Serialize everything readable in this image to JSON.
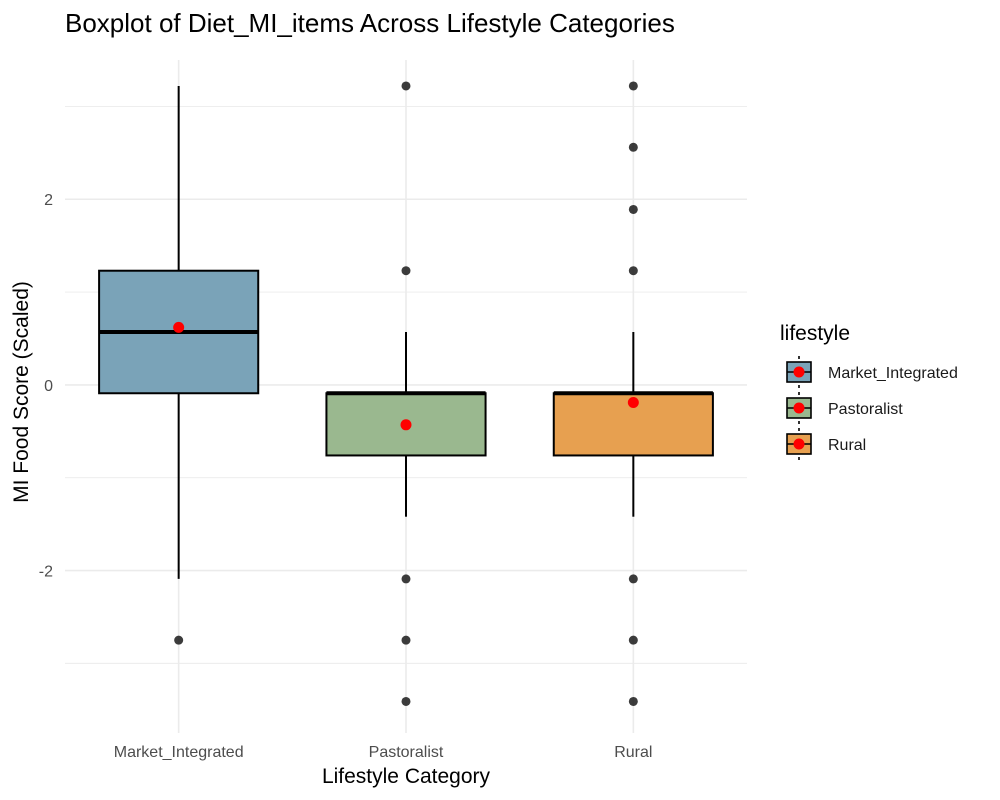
{
  "chart_data": {
    "type": "boxplot",
    "title": "Boxplot of Diet_MI_items Across Lifestyle Categories",
    "xlabel": "Lifestyle Category",
    "ylabel": "MI Food Score (Scaled)",
    "ylim": [
      -3.75,
      3.5
    ],
    "yticks": [
      -2,
      0,
      2
    ],
    "ytick_labels": [
      "-2",
      "0",
      "2"
    ],
    "grid": true,
    "legend": {
      "title": "lifestyle",
      "position": "right"
    },
    "mean_marker_color": "#ff0000",
    "outlier_color": "#1a1a1a",
    "categories": [
      "Market_Integrated",
      "Pastoralist",
      "Rural"
    ],
    "boxes": [
      {
        "name": "Market_Integrated",
        "color": "#7aa3b8",
        "whisker_low": -2.09,
        "q1": -0.09,
        "median": 0.57,
        "q3": 1.23,
        "whisker_high": 3.22,
        "mean": 0.62,
        "outliers": [
          -2.75
        ]
      },
      {
        "name": "Pastoralist",
        "color": "#9ab88f",
        "whisker_low": -1.42,
        "q1": -0.76,
        "median": -0.09,
        "q3": -0.09,
        "whisker_high": 0.57,
        "mean": -0.43,
        "outliers": [
          3.22,
          1.23,
          -2.09,
          -2.75,
          -3.41
        ]
      },
      {
        "name": "Rural",
        "color": "#e7a050",
        "whisker_low": -1.42,
        "q1": -0.76,
        "median": -0.09,
        "q3": -0.09,
        "whisker_high": 0.57,
        "mean": -0.19,
        "outliers": [
          3.22,
          2.56,
          1.89,
          1.23,
          -2.09,
          -2.75,
          -3.41
        ]
      }
    ]
  }
}
